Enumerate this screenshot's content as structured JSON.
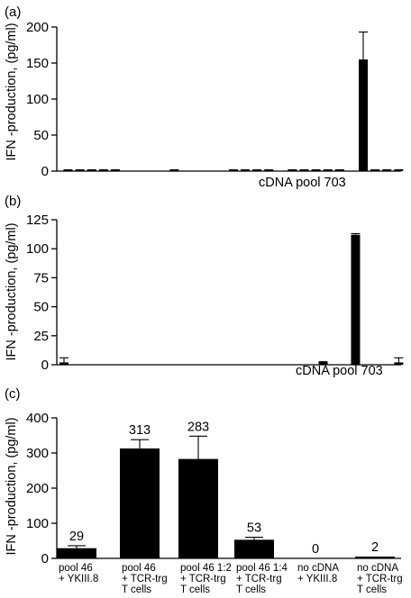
{
  "chart_data": [
    {
      "type": "bar",
      "panel_label": "(a)",
      "ylabel": "IFN -production, (pg/ml)",
      "ylim": [
        0,
        200
      ],
      "yticks": [
        0,
        50,
        100,
        150,
        200
      ],
      "annotation": "cDNA pool 703",
      "values": [
        1,
        1,
        1,
        1,
        1,
        0,
        0,
        0,
        0,
        2,
        0,
        0,
        0,
        0,
        1,
        1,
        1,
        1,
        0,
        1,
        1,
        1,
        1,
        1,
        0,
        155,
        1,
        1,
        1
      ],
      "errors": [
        0,
        0,
        0,
        0,
        0,
        0,
        0,
        0,
        0,
        0,
        0,
        0,
        0,
        0,
        0,
        0,
        0,
        0,
        0,
        0,
        0,
        0,
        0,
        0,
        0,
        38,
        0,
        0,
        0
      ]
    },
    {
      "type": "bar",
      "panel_label": "(b)",
      "ylabel": "IFN -production, (pg/ml)",
      "ylim": [
        0,
        125
      ],
      "yticks": [
        0,
        25,
        50,
        75,
        100,
        125
      ],
      "annotation": "cDNA pool 703",
      "values": [
        2,
        0,
        0,
        0,
        0,
        0,
        0,
        0,
        0,
        0,
        0,
        0,
        0,
        0,
        0,
        0,
        0,
        0,
        0,
        0,
        0,
        0,
        0,
        0,
        3,
        0,
        0,
        112,
        0,
        0,
        0,
        2
      ],
      "errors": [
        4,
        0,
        0,
        0,
        0,
        0,
        0,
        0,
        0,
        0,
        0,
        0,
        0,
        0,
        0,
        0,
        0,
        0,
        0,
        0,
        0,
        0,
        0,
        0,
        0,
        0,
        0,
        1,
        0,
        0,
        0,
        4
      ]
    },
    {
      "type": "bar",
      "panel_label": "(c)",
      "ylabel": "IFN -production, (pg/ml)",
      "ylim": [
        0,
        400
      ],
      "yticks": [
        0,
        100,
        200,
        300,
        400
      ],
      "categories": [
        [
          "pool 46",
          "+ YKIII.8"
        ],
        [
          "pool 46",
          "+ TCR-trg",
          "T cells"
        ],
        [
          "pool 46 1:2",
          "+ TCR-trg",
          "T cells"
        ],
        [
          "pool 46 1:4",
          "+ TCR-trg",
          "T cells"
        ],
        [
          "no cDNA",
          "+ YKIII.8"
        ],
        [
          "no cDNA",
          "+ TCR-trg",
          "T cells"
        ]
      ],
      "values": [
        29,
        313,
        283,
        53,
        0,
        2
      ],
      "errors": [
        7,
        25,
        65,
        7,
        0,
        0
      ],
      "data_labels": [
        "29",
        "313",
        "283",
        "53",
        "0",
        "2"
      ]
    }
  ]
}
